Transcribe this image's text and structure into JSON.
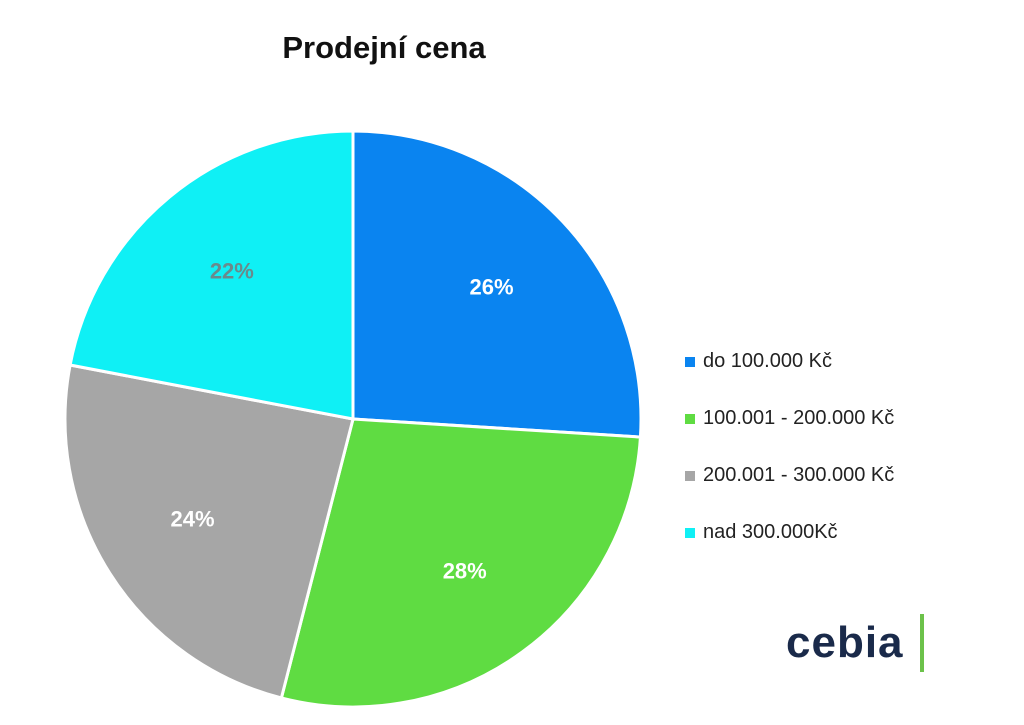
{
  "title": "Prodejní cena",
  "chart_data": {
    "type": "pie",
    "title": "Prodejní cena",
    "start_angle_deg": 0,
    "direction": "clockwise",
    "slices": [
      {
        "label": "do 100.000 Kč",
        "value": 26,
        "display": "26%",
        "color": "#0a84f0",
        "label_color": "#ffffff"
      },
      {
        "label": "100.001 - 200.000 Kč",
        "value": 28,
        "display": "28%",
        "color": "#5fdc42",
        "label_color": "#ffffff"
      },
      {
        "label": "200.001 - 300.000 Kč",
        "value": 24,
        "display": "24%",
        "color": "#a6a6a6",
        "label_color": "#ffffff"
      },
      {
        "label": "nad 300.000Kč",
        "value": 22,
        "display": "22%",
        "color": "#0ff0f5",
        "label_color": "#6a8a8c"
      }
    ],
    "legend": {
      "position": "right"
    }
  },
  "brand": {
    "name": "cebia",
    "text_color": "#1a2a4a",
    "accent_color": "#6cc24a"
  }
}
